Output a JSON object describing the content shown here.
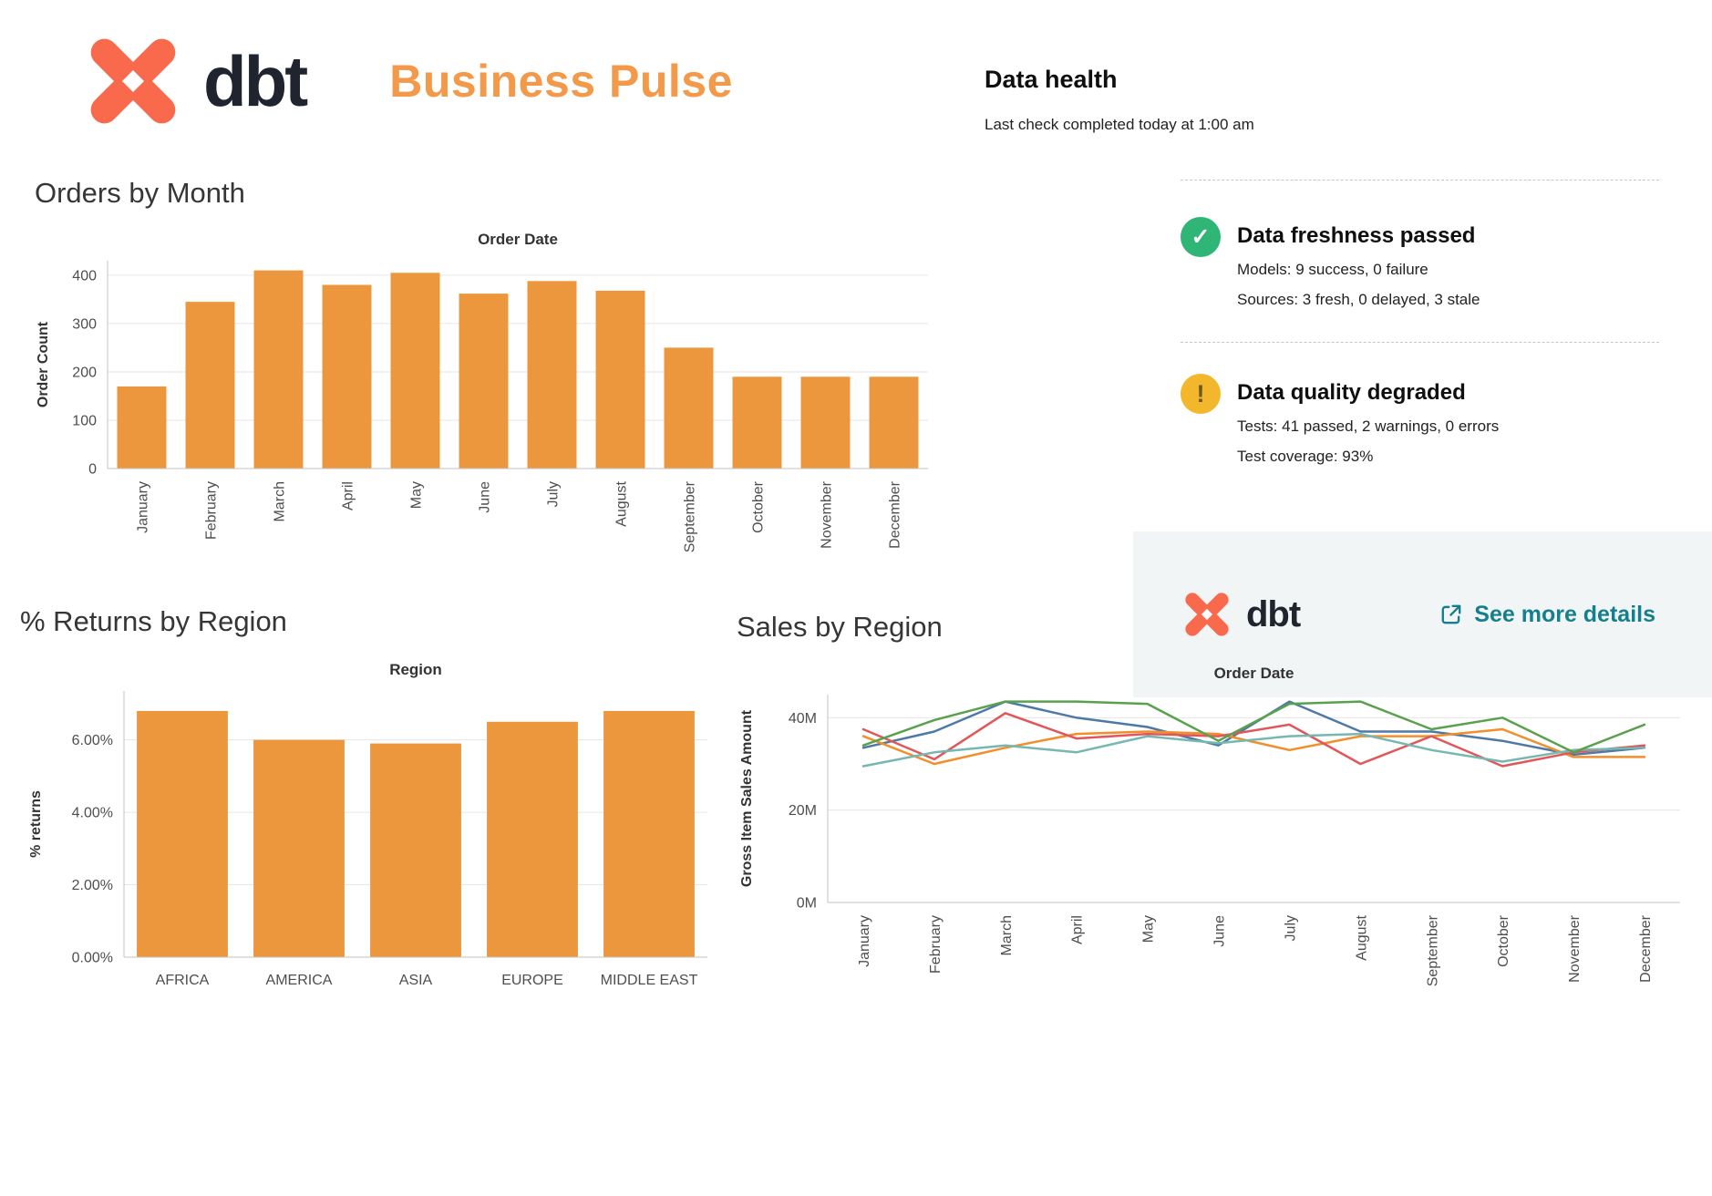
{
  "header": {
    "logo_text": "dbt",
    "page_title": "Business Pulse"
  },
  "data_health": {
    "title": "Data health",
    "subtitle": "Last check completed today at 1:00 am",
    "items": [
      {
        "title": "Data freshness passed",
        "icon": "check-circle-icon",
        "icon_color": "#2fb677",
        "icon_glyph": "✓",
        "lines": [
          "Models: 9 success, 0 failure",
          "Sources: 3 fresh, 0 delayed, 3 stale"
        ]
      },
      {
        "title": "Data quality degraded",
        "icon": "warning-circle-icon",
        "icon_color": "#f3b72b",
        "icon_glyph": "!",
        "lines": [
          "Tests: 41 passed, 2 warnings, 0 errors",
          "Test coverage: 93%"
        ]
      }
    ],
    "footer": {
      "logo_text": "dbt",
      "link_text": "See more details",
      "link_color": "#15808d"
    }
  },
  "chart_data": [
    {
      "type": "bar",
      "title": "Orders by Month",
      "axis_title": "Order Date",
      "xlabel": "Order Date",
      "ylabel": "Order Count",
      "categories": [
        "January",
        "February",
        "March",
        "April",
        "May",
        "June",
        "July",
        "August",
        "September",
        "October",
        "November",
        "December"
      ],
      "values": [
        170,
        345,
        410,
        380,
        405,
        362,
        388,
        368,
        250,
        190,
        190,
        190
      ],
      "yticks": [
        0,
        100,
        200,
        300,
        400
      ],
      "ytick_labels": [
        "0",
        "100",
        "200",
        "300",
        "400"
      ],
      "ylim": [
        0,
        430
      ],
      "bar_color": "#ec973d",
      "grid": true,
      "legend": "none"
    },
    {
      "type": "bar",
      "title": "% Returns by Region",
      "axis_title": "Region",
      "xlabel": "Region",
      "ylabel": "% returns",
      "categories": [
        "AFRICA",
        "AMERICA",
        "ASIA",
        "EUROPE",
        "MIDDLE EAST"
      ],
      "values": [
        6.8,
        6.0,
        5.9,
        6.5,
        6.8
      ],
      "yticks": [
        0,
        2,
        4,
        6
      ],
      "ytick_labels": [
        "0.00%",
        "2.00%",
        "4.00%",
        "6.00%"
      ],
      "ylim": [
        0,
        7.35
      ],
      "bar_color": "#ec973d",
      "grid": true,
      "legend": "none"
    },
    {
      "type": "line",
      "title": "Sales by Region",
      "axis_title": "Order Date",
      "xlabel": "Order Date",
      "ylabel": "Gross Item Sales Amount",
      "categories": [
        "January",
        "February",
        "March",
        "April",
        "May",
        "June",
        "July",
        "August",
        "September",
        "October",
        "November",
        "December"
      ],
      "series": [
        {
          "name": "blue",
          "color": "#4e79a7",
          "values": [
            33.5,
            37,
            43.5,
            40,
            38,
            34,
            43.5,
            37,
            37,
            35,
            32,
            33.5
          ]
        },
        {
          "name": "orange",
          "color": "#f28e2b",
          "values": [
            36,
            30,
            33.5,
            36.5,
            37,
            36.5,
            33,
            36,
            36,
            37.5,
            31.5,
            31.5
          ]
        },
        {
          "name": "red",
          "color": "#e15759",
          "values": [
            37.5,
            31,
            41,
            35.5,
            36.5,
            36,
            38.5,
            30,
            36,
            29.5,
            32.5,
            34
          ]
        },
        {
          "name": "teal",
          "color": "#76b7b2",
          "values": [
            29.5,
            32.5,
            34,
            32.5,
            36,
            34.5,
            36,
            36.5,
            33,
            30.5,
            33,
            33.5
          ]
        },
        {
          "name": "green",
          "color": "#59a14c",
          "values": [
            34,
            39.5,
            43.5,
            43.5,
            43,
            35,
            43,
            43.5,
            37.5,
            40,
            32.5,
            38.5
          ]
        }
      ],
      "yticks": [
        0,
        20,
        40
      ],
      "ytick_labels": [
        "0M",
        "20M",
        "40M"
      ],
      "ylim": [
        0,
        45
      ],
      "grid": true,
      "legend": "none"
    }
  ]
}
